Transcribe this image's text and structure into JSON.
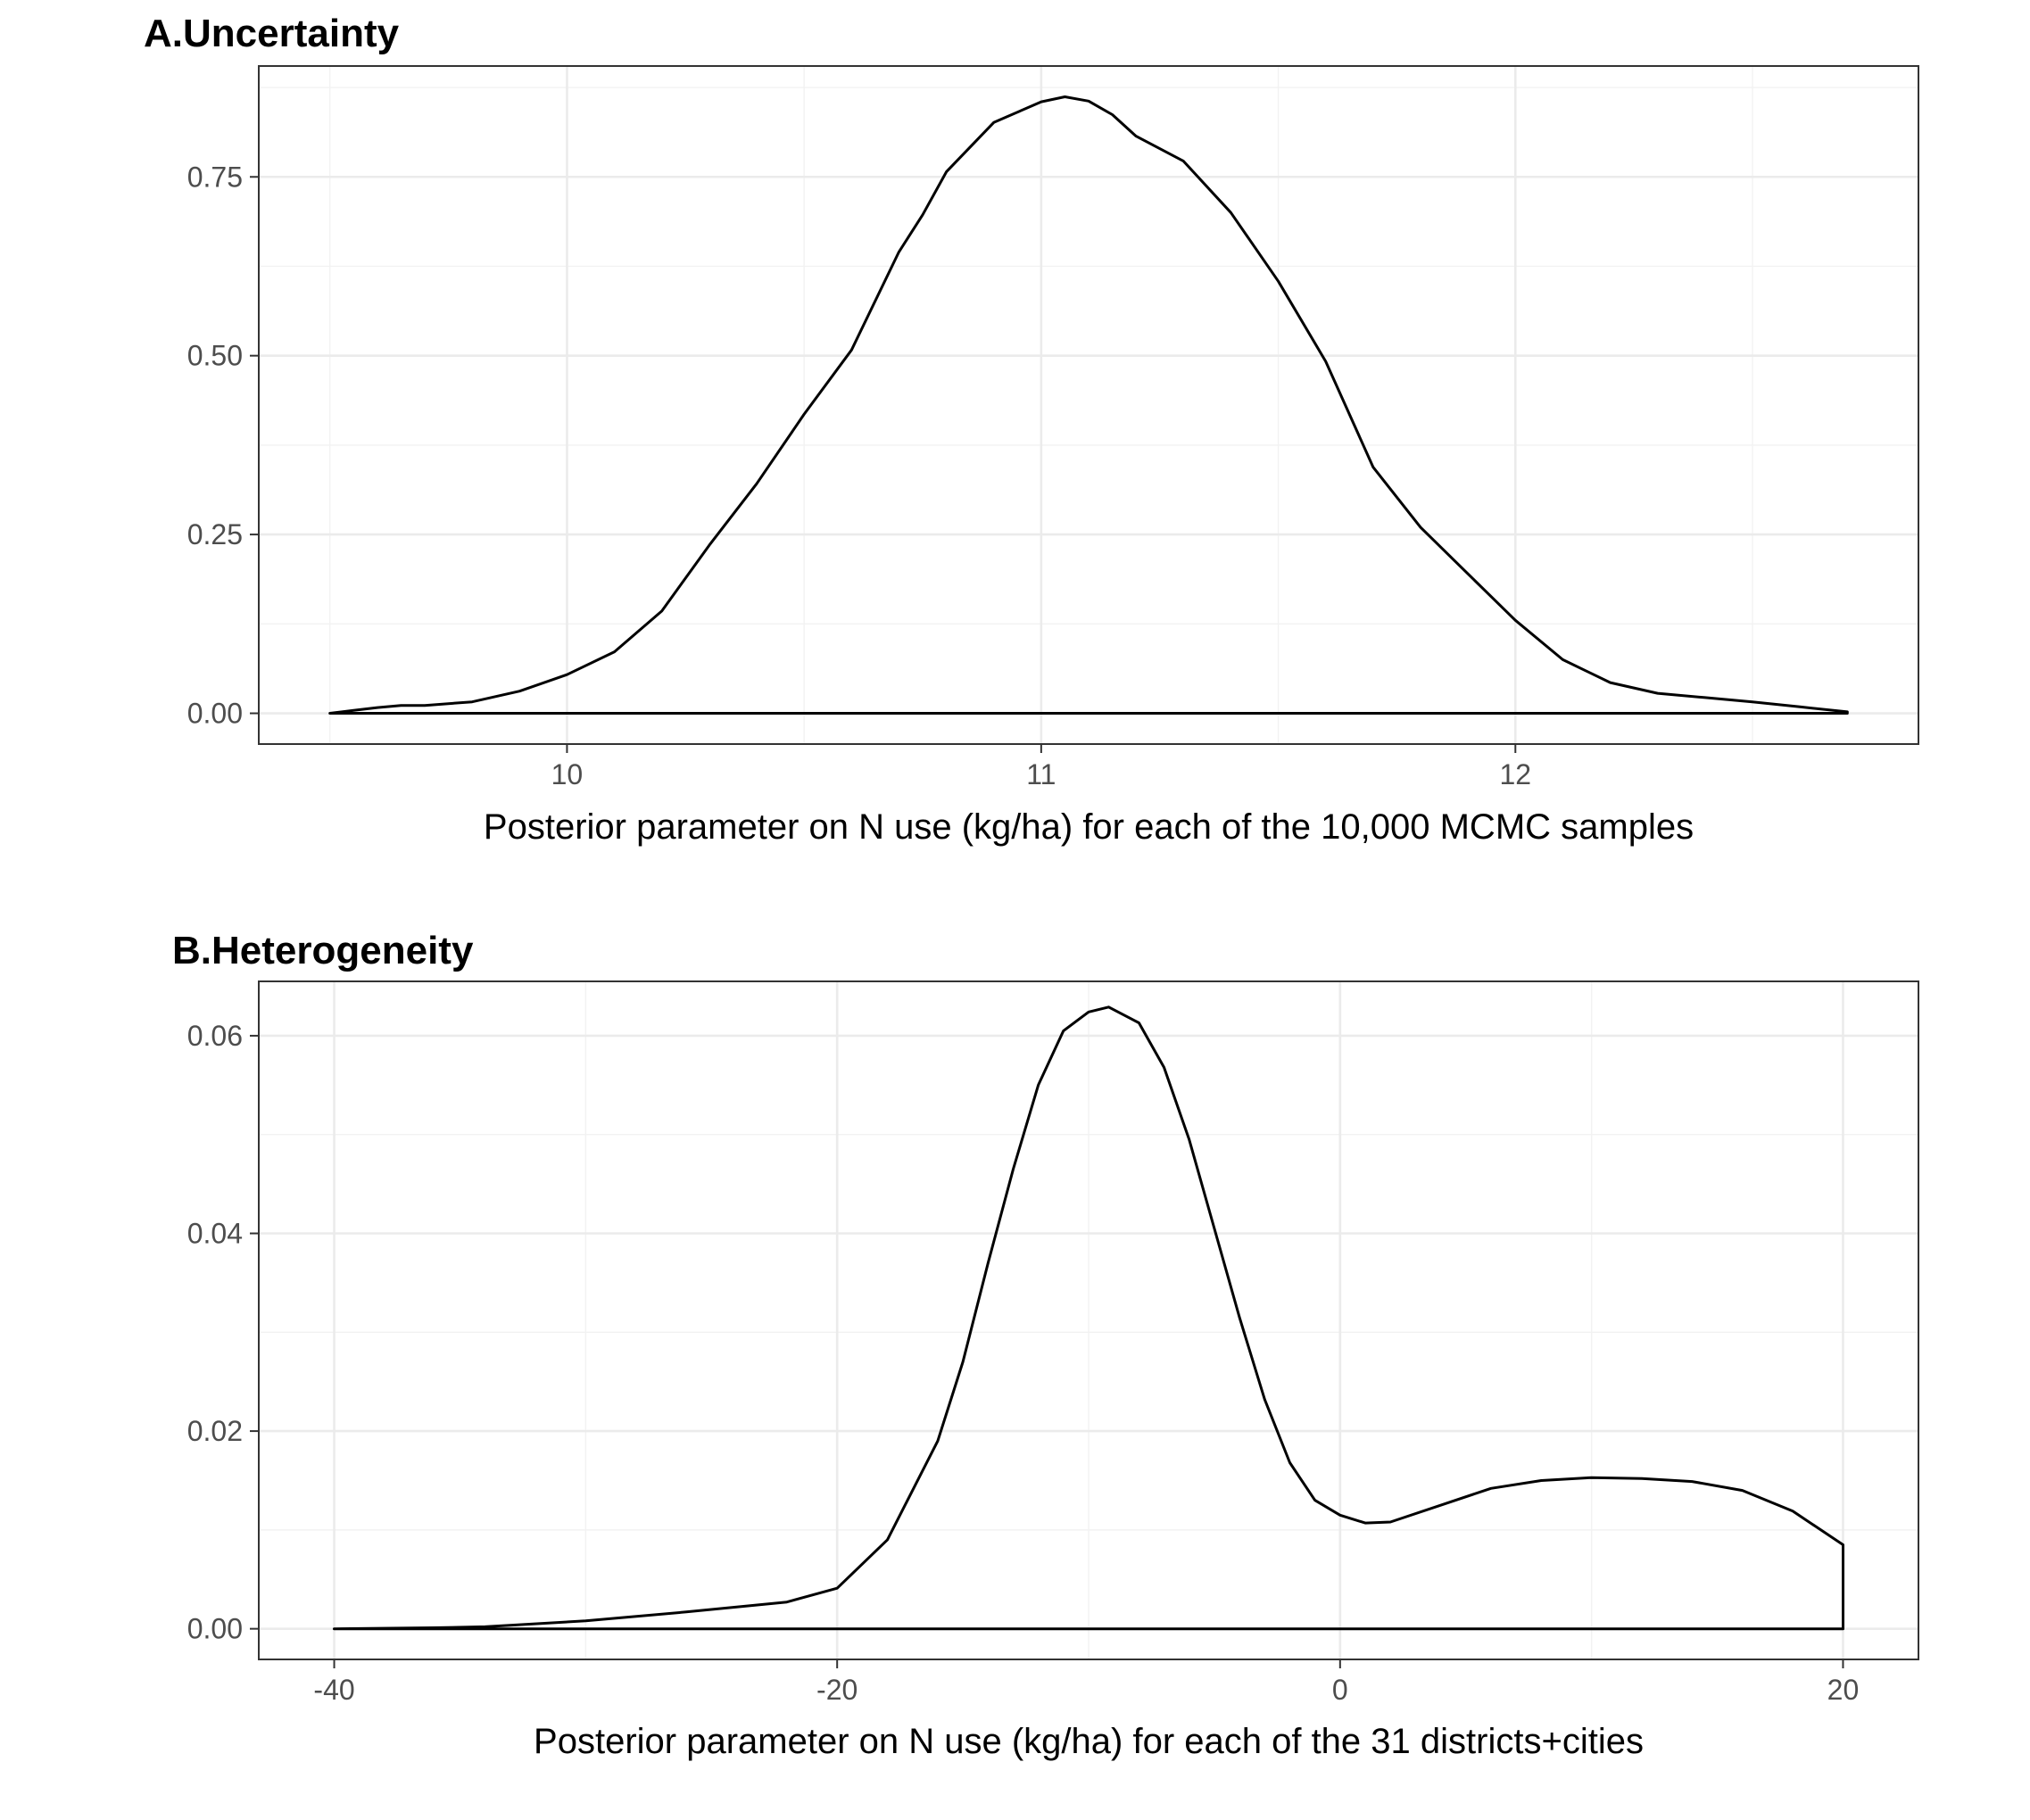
{
  "chart_data": [
    {
      "type": "line",
      "title": "A.Uncertainty",
      "xlabel": "Posterior parameter on N use (kg/ha) for each of the 10,000 MCMC samples",
      "ylabel": "",
      "xlim": [
        9.35,
        12.85
      ],
      "ylim": [
        -0.043,
        0.905
      ],
      "x_ticks": [
        10,
        11,
        12
      ],
      "x_tick_labels": [
        "10",
        "11",
        "12"
      ],
      "y_ticks": [
        0,
        0.25,
        0.5,
        0.75
      ],
      "y_tick_labels": [
        "0.00",
        "0.25",
        "0.50",
        "0.75"
      ],
      "grid": true,
      "legend": "none",
      "baseline_from_to": [
        9.5,
        12.7
      ],
      "series": [
        {
          "x": [
            9.5,
            9.55,
            9.6,
            9.65,
            9.7,
            9.8,
            9.9,
            10.0,
            10.1,
            10.2,
            10.3,
            10.4,
            10.5,
            10.6,
            10.7,
            10.75,
            10.8,
            10.9,
            11.0,
            11.05,
            11.1,
            11.15,
            11.2,
            11.3,
            11.4,
            11.5,
            11.6,
            11.7,
            11.8,
            11.9,
            12.0,
            12.1,
            12.2,
            12.3,
            12.4,
            12.5,
            12.6,
            12.7
          ],
          "y": [
            0.0,
            0.004,
            0.008,
            0.011,
            0.011,
            0.016,
            0.031,
            0.054,
            0.086,
            0.143,
            0.235,
            0.321,
            0.418,
            0.508,
            0.645,
            0.697,
            0.757,
            0.826,
            0.855,
            0.862,
            0.856,
            0.837,
            0.807,
            0.772,
            0.7,
            0.604,
            0.492,
            0.344,
            0.26,
            0.195,
            0.13,
            0.075,
            0.043,
            0.028,
            0.022,
            0.016,
            0.009,
            0.002
          ]
        }
      ]
    },
    {
      "type": "line",
      "title": "B.Heterogeneity",
      "xlabel": "Posterior parameter on N use (kg/ha) for each of the 31 districts+cities",
      "ylabel": "",
      "xlim": [
        -43,
        23
      ],
      "ylim": [
        -0.0031,
        0.0655
      ],
      "x_ticks": [
        -40,
        -20,
        0,
        20
      ],
      "x_tick_labels": [
        "-40",
        "-20",
        "0",
        "20"
      ],
      "y_ticks": [
        0,
        0.02,
        0.04,
        0.06
      ],
      "y_tick_labels": [
        "0.00",
        "0.02",
        "0.04",
        "0.06"
      ],
      "grid": true,
      "legend": "none",
      "baseline_from_to": [
        -40,
        20
      ],
      "series": [
        {
          "x": [
            -40,
            -36,
            -34,
            -30,
            -26,
            -24,
            -22,
            -20,
            -18,
            -16,
            -15,
            -14,
            -13,
            -12,
            -11,
            -10,
            -9.2,
            -8,
            -7,
            -6,
            -5,
            -4,
            -3,
            -2,
            -1,
            0,
            1,
            2,
            4,
            6,
            8,
            10,
            12,
            14,
            16,
            18,
            20
          ],
          "y": [
            0.0,
            0.0001,
            0.0002,
            0.0008,
            0.0017,
            0.0022,
            0.0027,
            0.0041,
            0.009,
            0.019,
            0.027,
            0.037,
            0.0465,
            0.055,
            0.0605,
            0.0624,
            0.0629,
            0.0613,
            0.0568,
            0.0495,
            0.0405,
            0.0315,
            0.0232,
            0.0168,
            0.013,
            0.0115,
            0.0107,
            0.0108,
            0.0125,
            0.0142,
            0.015,
            0.0153,
            0.0152,
            0.0149,
            0.014,
            0.0119,
            0.0085
          ]
        }
      ]
    }
  ]
}
